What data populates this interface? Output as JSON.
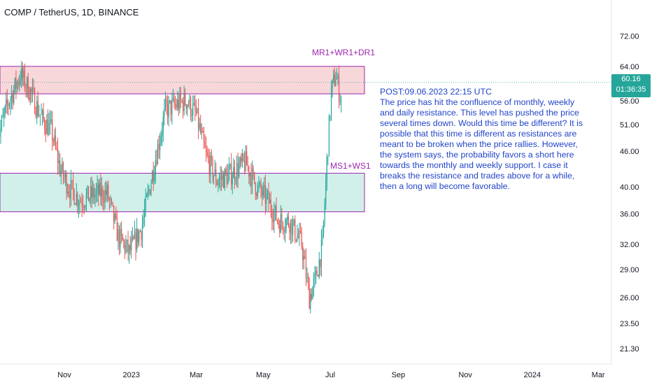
{
  "header": {
    "symbol_line": "COMP / TetherUS, 1D, BINANCE"
  },
  "annotations": {
    "resistance_label": "MR1+WR1+DR1",
    "support_label": "MS1+WS1",
    "post_title": "POST:09.06.2023 22:15 UTC",
    "post_body": "The price has hit the confluence of monthly, weekly and daily resistance. This level has pushed the price several times down. Would this time be different? It is possible that this time is different as resistances are meant to be broken when the price rallies. However, the system says, the probability favors a short here towards the monthly and weekly support. I case it breaks the resistance and trades above for a while, then a long will become favorable."
  },
  "price_tag": {
    "price": "60.16",
    "countdown": "01:36:35"
  },
  "colors": {
    "up": "#26a69a",
    "down": "#ef5350",
    "resistance_fill": "#f8d7da",
    "support_fill": "#d1f0ea",
    "zone_border": "#9c27b0",
    "axis_text": "#131722"
  },
  "chart_data": {
    "type": "candlestick",
    "y_scale": "log",
    "ylim": [
      20.5,
      82
    ],
    "y_ticks": [
      "72.00",
      "64.00",
      "56.00",
      "51.00",
      "46.00",
      "40.00",
      "36.00",
      "32.00",
      "29.00",
      "26.00",
      "23.50",
      "21.30"
    ],
    "x_ticks": [
      "Nov",
      "2023",
      "Mar",
      "May",
      "Jul",
      "Sep",
      "Nov",
      "2024",
      "Mar"
    ],
    "zones": [
      {
        "name": "resistance",
        "low": 57.5,
        "high": 64.0
      },
      {
        "name": "support",
        "low": 36.3,
        "high": 42.2
      }
    ],
    "last_price": 60.16,
    "price_path": [
      {
        "date": "2022-09-01",
        "price": 48
      },
      {
        "date": "2022-09-10",
        "price": 55
      },
      {
        "date": "2022-09-22",
        "price": 62
      },
      {
        "date": "2022-10-01",
        "price": 58
      },
      {
        "date": "2022-10-12",
        "price": 52
      },
      {
        "date": "2022-10-20",
        "price": 50
      },
      {
        "date": "2022-10-28",
        "price": 43
      },
      {
        "date": "2022-11-05",
        "price": 40
      },
      {
        "date": "2022-11-15",
        "price": 38
      },
      {
        "date": "2022-12-01",
        "price": 39
      },
      {
        "date": "2022-12-10",
        "price": 39
      },
      {
        "date": "2022-12-20",
        "price": 33
      },
      {
        "date": "2022-12-30",
        "price": 31
      },
      {
        "date": "2023-01-10",
        "price": 34
      },
      {
        "date": "2023-01-20",
        "price": 42
      },
      {
        "date": "2023-02-01",
        "price": 54
      },
      {
        "date": "2023-02-10",
        "price": 55
      },
      {
        "date": "2023-02-20",
        "price": 56
      },
      {
        "date": "2023-03-01",
        "price": 53
      },
      {
        "date": "2023-03-10",
        "price": 45
      },
      {
        "date": "2023-03-20",
        "price": 41
      },
      {
        "date": "2023-04-01",
        "price": 42
      },
      {
        "date": "2023-04-15",
        "price": 44
      },
      {
        "date": "2023-04-25",
        "price": 40
      },
      {
        "date": "2023-05-05",
        "price": 38
      },
      {
        "date": "2023-05-15",
        "price": 35
      },
      {
        "date": "2023-05-25",
        "price": 35
      },
      {
        "date": "2023-06-05",
        "price": 32
      },
      {
        "date": "2023-06-12",
        "price": 26
      },
      {
        "date": "2023-06-18",
        "price": 28
      },
      {
        "date": "2023-06-24",
        "price": 32
      },
      {
        "date": "2023-06-28",
        "price": 44
      },
      {
        "date": "2023-07-02",
        "price": 58
      },
      {
        "date": "2023-07-06",
        "price": 62
      },
      {
        "date": "2023-07-11",
        "price": 56
      }
    ]
  }
}
